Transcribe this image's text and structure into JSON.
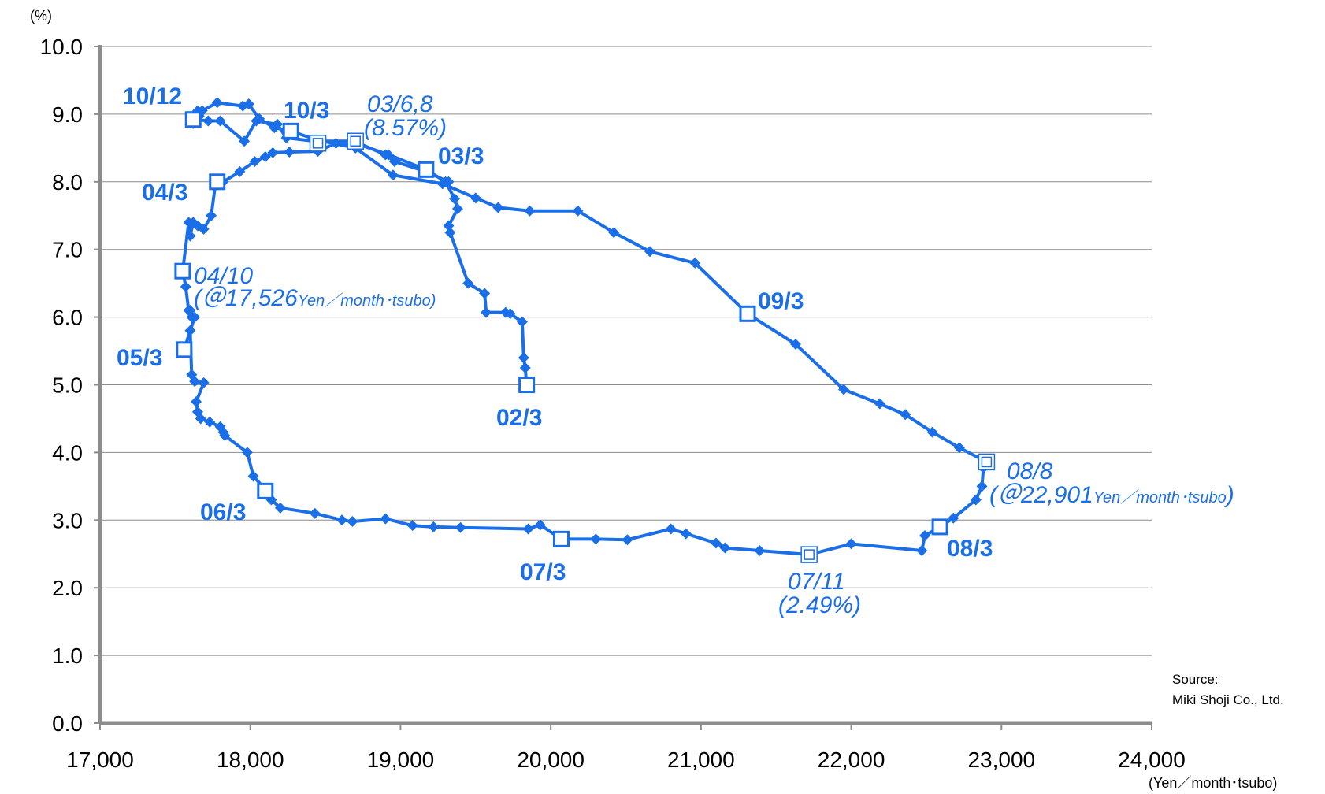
{
  "chart_data": {
    "type": "line",
    "xlabel": "(Yen／month･tsubo)",
    "ylabel": "(%)",
    "xlim": [
      17000,
      24000
    ],
    "ylim": [
      0,
      10
    ],
    "x_ticks": [
      17000,
      18000,
      19000,
      20000,
      21000,
      22000,
      23000,
      24000
    ],
    "x_tick_labels": [
      "17,000",
      "18,000",
      "19,000",
      "20,000",
      "21,000",
      "22,000",
      "23,000",
      "24,000"
    ],
    "y_ticks": [
      0,
      1,
      2,
      3,
      4,
      5,
      6,
      7,
      8,
      9,
      10
    ],
    "y_tick_labels": [
      "0.0",
      "1.0",
      "2.0",
      "3.0",
      "4.0",
      "5.0",
      "6.0",
      "7.0",
      "8.0",
      "9.0",
      "10.0"
    ],
    "grid": "horizontal",
    "color": "#1a6fe8",
    "source": [
      "Source:",
      "Miki Shoji Co., Ltd."
    ],
    "series": [
      {
        "x": [
          19840,
          19830,
          19820,
          19810,
          19730,
          19700,
          19570,
          19560,
          19450,
          19330,
          19320,
          19380,
          19360,
          19300,
          19170,
          18920,
          18700,
          18570,
          18450,
          18260,
          18150,
          18100,
          18030,
          17930,
          17820,
          17770,
          17740,
          17690,
          17650,
          17620,
          17600,
          17590,
          17550,
          17570,
          17590,
          17600,
          17610,
          17630,
          17560,
          17600,
          17610,
          17630,
          17690,
          17640,
          17650,
          17670,
          17730,
          17800,
          17820,
          17830,
          17980,
          18020,
          18110,
          18140,
          18200,
          18430,
          18610,
          18680,
          18900,
          19080,
          19220,
          19400,
          19850,
          19930,
          20070,
          20300,
          20510,
          20800,
          20900,
          21100,
          21160,
          21390,
          21720,
          22000,
          22470,
          22490,
          22590,
          22680,
          22830,
          22870,
          22880,
          22901,
          22720,
          22540,
          22360,
          22190,
          21950,
          21630,
          21310,
          20960,
          20660,
          20420,
          20180,
          19860,
          19650,
          19500,
          19280,
          18950,
          18700,
          18440,
          18270,
          18160,
          18060,
          17990,
          17950,
          17780,
          17680,
          17660,
          17650,
          17620,
          17640,
          17720,
          17800,
          17960,
          18040,
          18180,
          18240,
          18430,
          18690,
          18900,
          18960,
          19170,
          19320
        ],
        "y": [
          5.0,
          5.25,
          5.4,
          5.93,
          6.05,
          6.07,
          6.07,
          6.35,
          6.5,
          7.25,
          7.35,
          7.6,
          7.75,
          8.0,
          8.18,
          8.4,
          8.57,
          8.57,
          8.45,
          8.44,
          8.43,
          8.37,
          8.3,
          8.15,
          8.0,
          8.0,
          7.5,
          7.3,
          7.35,
          7.4,
          7.2,
          7.4,
          6.68,
          6.45,
          6.1,
          6.1,
          6.0,
          6.0,
          5.52,
          5.8,
          5.15,
          5.05,
          5.03,
          4.75,
          4.6,
          4.5,
          4.45,
          4.38,
          4.3,
          4.25,
          4.0,
          3.65,
          3.43,
          3.3,
          3.18,
          3.1,
          3.0,
          2.98,
          3.02,
          2.92,
          2.9,
          2.89,
          2.87,
          2.93,
          2.72,
          2.72,
          2.71,
          2.87,
          2.8,
          2.66,
          2.59,
          2.55,
          2.49,
          2.65,
          2.55,
          2.77,
          2.9,
          3.03,
          3.3,
          3.5,
          3.77,
          3.86,
          4.07,
          4.3,
          4.56,
          4.72,
          4.93,
          5.6,
          6.05,
          6.8,
          6.97,
          7.25,
          7.57,
          7.57,
          7.62,
          7.76,
          7.97,
          8.1,
          8.5,
          8.62,
          8.75,
          8.8,
          8.93,
          9.15,
          9.12,
          9.17,
          9.05,
          8.97,
          9.05,
          8.86,
          8.92,
          8.9,
          8.9,
          8.6,
          8.9,
          8.85,
          8.65,
          8.6,
          8.6,
          8.4,
          8.3,
          8.15,
          8.0
        ]
      }
    ],
    "square_markers": [
      {
        "x": 19840,
        "y": 5.0
      },
      {
        "x": 19170,
        "y": 8.18
      },
      {
        "x": 17780,
        "y": 8.0
      },
      {
        "x": 17550,
        "y": 6.68
      },
      {
        "x": 17560,
        "y": 5.52
      },
      {
        "x": 18100,
        "y": 3.43
      },
      {
        "x": 20070,
        "y": 2.72
      },
      {
        "x": 22590,
        "y": 2.9
      },
      {
        "x": 21310,
        "y": 6.05
      },
      {
        "x": 18270,
        "y": 8.75
      },
      {
        "x": 17620,
        "y": 8.92
      }
    ],
    "double_square_markers": [
      {
        "x": 18700,
        "y": 8.6
      },
      {
        "x": 18450,
        "y": 8.57
      },
      {
        "x": 21720,
        "y": 2.49
      },
      {
        "x": 22901,
        "y": 3.86
      }
    ],
    "annotations": {
      "a_02_3": "02/3",
      "a_03_3": "03/3",
      "a_03_68": "03/6,8",
      "a_03_68_val": "(8.57%)",
      "a_04_3": "04/3",
      "a_04_10": "04/10",
      "a_04_10_open": "(＠17,526",
      "a_04_10_unit": "Yen／month･tsubo)",
      "a_05_3": "05/3",
      "a_06_3": "06/3",
      "a_07_3": "07/3",
      "a_07_11": "07/11",
      "a_07_11_val": "(2.49%)",
      "a_08_3": "08/3",
      "a_08_8": "08/8",
      "a_08_8_open": "(＠22,901",
      "a_08_8_unit": "Yen／month･tsubo",
      "a_08_8_close": ")",
      "a_09_3": "09/3",
      "a_10_3": "10/3",
      "a_10_12": "10/12"
    }
  }
}
